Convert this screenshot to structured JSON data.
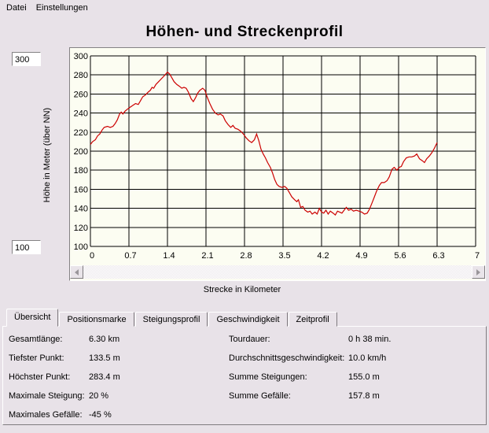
{
  "menu": {
    "items": [
      {
        "label": "Datei"
      },
      {
        "label": "Einstellungen"
      }
    ]
  },
  "title": "Höhen- und Streckenprofil",
  "axis_inputs": {
    "y_max": "300",
    "y_min": "100"
  },
  "chart_data": {
    "type": "line",
    "title": "Höhen- und Streckenprofil",
    "xlabel": "Strecke in Kilometer",
    "ylabel": "Höhe in Meter (über NN)",
    "xlim": [
      0,
      7
    ],
    "ylim": [
      100,
      300
    ],
    "grid": true,
    "legend": "none",
    "line_color": "#CC0000",
    "grid_color": "#000000",
    "plot_bg": "#FCFDF2",
    "x_tick_values": [
      0,
      0.7,
      1.4,
      2.1,
      2.8,
      3.5,
      4.2,
      4.9,
      5.6,
      6.3,
      7
    ],
    "x_tick_labels": [
      "0",
      "0.7",
      "1.4",
      "2.1",
      "2.8",
      "3.5",
      "4.2",
      "4.9",
      "5.6",
      "6.3",
      "7"
    ],
    "y_tick_values": [
      100,
      120,
      140,
      160,
      180,
      200,
      220,
      240,
      260,
      280,
      300
    ],
    "y_tick_labels": [
      "100",
      "120",
      "140",
      "160",
      "180",
      "200",
      "220",
      "240",
      "260",
      "280",
      "300"
    ],
    "series": [
      {
        "name": "Höhenprofil",
        "points": [
          [
            0.0,
            207
          ],
          [
            0.04,
            210
          ],
          [
            0.09,
            212
          ],
          [
            0.13,
            216
          ],
          [
            0.17,
            218
          ],
          [
            0.21,
            222
          ],
          [
            0.25,
            225
          ],
          [
            0.31,
            226
          ],
          [
            0.36,
            225
          ],
          [
            0.41,
            226
          ],
          [
            0.45,
            229
          ],
          [
            0.49,
            233
          ],
          [
            0.53,
            239
          ],
          [
            0.56,
            241
          ],
          [
            0.59,
            239
          ],
          [
            0.63,
            242
          ],
          [
            0.67,
            244
          ],
          [
            0.72,
            246
          ],
          [
            0.77,
            248
          ],
          [
            0.82,
            250
          ],
          [
            0.87,
            249
          ],
          [
            0.91,
            253
          ],
          [
            0.95,
            257
          ],
          [
            1.0,
            259
          ],
          [
            1.05,
            262
          ],
          [
            1.09,
            264
          ],
          [
            1.12,
            267
          ],
          [
            1.15,
            266
          ],
          [
            1.19,
            270
          ],
          [
            1.24,
            273
          ],
          [
            1.29,
            276
          ],
          [
            1.34,
            279
          ],
          [
            1.4,
            283
          ],
          [
            1.44,
            281
          ],
          [
            1.48,
            277
          ],
          [
            1.52,
            273
          ],
          [
            1.57,
            270
          ],
          [
            1.62,
            268
          ],
          [
            1.66,
            266
          ],
          [
            1.7,
            267
          ],
          [
            1.74,
            266
          ],
          [
            1.78,
            262
          ],
          [
            1.83,
            255
          ],
          [
            1.87,
            252
          ],
          [
            1.91,
            256
          ],
          [
            1.95,
            261
          ],
          [
            1.99,
            264
          ],
          [
            2.04,
            266
          ],
          [
            2.08,
            264
          ],
          [
            2.12,
            257
          ],
          [
            2.17,
            250
          ],
          [
            2.22,
            244
          ],
          [
            2.27,
            240
          ],
          [
            2.32,
            238
          ],
          [
            2.36,
            239
          ],
          [
            2.41,
            237
          ],
          [
            2.45,
            232
          ],
          [
            2.5,
            228
          ],
          [
            2.55,
            225
          ],
          [
            2.59,
            227
          ],
          [
            2.63,
            224
          ],
          [
            2.68,
            223
          ],
          [
            2.73,
            221
          ],
          [
            2.78,
            218
          ],
          [
            2.83,
            214
          ],
          [
            2.88,
            211
          ],
          [
            2.93,
            209
          ],
          [
            2.98,
            212
          ],
          [
            3.02,
            218
          ],
          [
            3.06,
            211
          ],
          [
            3.1,
            202
          ],
          [
            3.14,
            197
          ],
          [
            3.18,
            193
          ],
          [
            3.22,
            188
          ],
          [
            3.27,
            183
          ],
          [
            3.31,
            177
          ],
          [
            3.35,
            170
          ],
          [
            3.39,
            165
          ],
          [
            3.43,
            163
          ],
          [
            3.48,
            162
          ],
          [
            3.53,
            163
          ],
          [
            3.57,
            161
          ],
          [
            3.62,
            156
          ],
          [
            3.66,
            152
          ],
          [
            3.71,
            149
          ],
          [
            3.75,
            147
          ],
          [
            3.78,
            149
          ],
          [
            3.82,
            141
          ],
          [
            3.86,
            142
          ],
          [
            3.9,
            138
          ],
          [
            3.95,
            136
          ],
          [
            3.99,
            137
          ],
          [
            4.03,
            134
          ],
          [
            4.08,
            136
          ],
          [
            4.12,
            134
          ],
          [
            4.16,
            140
          ],
          [
            4.2,
            136
          ],
          [
            4.24,
            135
          ],
          [
            4.28,
            138
          ],
          [
            4.32,
            134
          ],
          [
            4.36,
            137
          ],
          [
            4.41,
            135
          ],
          [
            4.45,
            133
          ],
          [
            4.49,
            137
          ],
          [
            4.53,
            136
          ],
          [
            4.57,
            135
          ],
          [
            4.61,
            138
          ],
          [
            4.65,
            141
          ],
          [
            4.69,
            138
          ],
          [
            4.74,
            139
          ],
          [
            4.78,
            137
          ],
          [
            4.83,
            138
          ],
          [
            4.88,
            137
          ],
          [
            4.93,
            136
          ],
          [
            4.98,
            134
          ],
          [
            5.03,
            135
          ],
          [
            5.07,
            139
          ],
          [
            5.12,
            146
          ],
          [
            5.16,
            152
          ],
          [
            5.2,
            158
          ],
          [
            5.25,
            164
          ],
          [
            5.29,
            167
          ],
          [
            5.34,
            167
          ],
          [
            5.39,
            169
          ],
          [
            5.43,
            173
          ],
          [
            5.48,
            181
          ],
          [
            5.52,
            183
          ],
          [
            5.57,
            180
          ],
          [
            5.61,
            183
          ],
          [
            5.65,
            184
          ],
          [
            5.69,
            189
          ],
          [
            5.74,
            193
          ],
          [
            5.79,
            194
          ],
          [
            5.84,
            194
          ],
          [
            5.89,
            195
          ],
          [
            5.93,
            197
          ],
          [
            5.98,
            192
          ],
          [
            6.03,
            190
          ],
          [
            6.07,
            188
          ],
          [
            6.11,
            192
          ],
          [
            6.16,
            195
          ],
          [
            6.2,
            198
          ],
          [
            6.25,
            203
          ],
          [
            6.3,
            209
          ]
        ]
      }
    ]
  },
  "scrollbar": {
    "left_icon": "scroll-left-arrow",
    "right_icon": "scroll-right-arrow"
  },
  "tabs": [
    {
      "label": "Übersicht",
      "active": true
    },
    {
      "label": "Positionsmarke",
      "active": false
    },
    {
      "label": "Steigungsprofil",
      "active": false
    },
    {
      "label": "Geschwindigkeit",
      "active": false
    },
    {
      "label": "Zeitprofil",
      "active": false
    }
  ],
  "stats": {
    "left": [
      {
        "label": "Gesamtlänge:",
        "value": "6.30 km"
      },
      {
        "label": "Tiefster Punkt:",
        "value": "133.5 m"
      },
      {
        "label": "Höchster Punkt:",
        "value": "283.4 m"
      },
      {
        "label": "Maximale Steigung:",
        "value": "20 %"
      },
      {
        "label": "Maximales Gefälle:",
        "value": "-45 %"
      }
    ],
    "right": [
      {
        "label": "Tourdauer:",
        "value": "0 h 38 min."
      },
      {
        "label": "Durchschnittsgeschwindigkeit:",
        "value": "10.0 km/h"
      },
      {
        "label": "Summe Steigungen:",
        "value": "155.0 m"
      },
      {
        "label": "Summe Gefälle:",
        "value": "157.8 m"
      }
    ]
  }
}
